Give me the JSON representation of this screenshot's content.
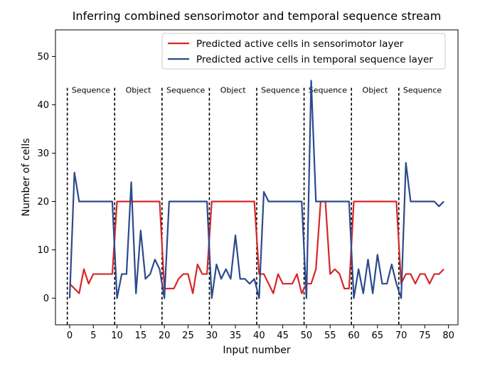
{
  "chart_data": {
    "type": "line",
    "title": "Inferring combined sensorimotor and temporal sequence stream",
    "xlabel": "Input number",
    "ylabel": "Number of cells",
    "xlim": [
      -3,
      82
    ],
    "ylim": [
      -5.5,
      55.5
    ],
    "xticks": [
      0,
      5,
      10,
      15,
      20,
      25,
      30,
      35,
      40,
      45,
      50,
      55,
      60,
      65,
      70,
      75,
      80
    ],
    "yticks": [
      0,
      10,
      20,
      30,
      40,
      50
    ],
    "grid": false,
    "legend_position": "top-right",
    "x": [
      0,
      1,
      2,
      3,
      4,
      5,
      6,
      7,
      8,
      9,
      10,
      11,
      12,
      13,
      14,
      15,
      16,
      17,
      18,
      19,
      20,
      21,
      22,
      23,
      24,
      25,
      26,
      27,
      28,
      29,
      30,
      31,
      32,
      33,
      34,
      35,
      36,
      37,
      38,
      39,
      40,
      41,
      42,
      43,
      44,
      45,
      46,
      47,
      48,
      49,
      50,
      51,
      52,
      53,
      54,
      55,
      56,
      57,
      58,
      59,
      60,
      61,
      62,
      63,
      64,
      65,
      66,
      67,
      68,
      69,
      70,
      71,
      72,
      73,
      74,
      75,
      76,
      77,
      78,
      79
    ],
    "series": [
      {
        "name": "Predicted active cells in sensorimotor layer",
        "color": "#d62728",
        "values": [
          3,
          2,
          1,
          6,
          3,
          5,
          5,
          5,
          5,
          5,
          20,
          20,
          20,
          20,
          20,
          20,
          20,
          20,
          20,
          20,
          2,
          2,
          2,
          4,
          5,
          5,
          1,
          7,
          5,
          5,
          20,
          20,
          20,
          20,
          20,
          20,
          20,
          20,
          20,
          20,
          5,
          5,
          3,
          1,
          5,
          3,
          3,
          3,
          5,
          1,
          3,
          3,
          6,
          20,
          20,
          5,
          6,
          5,
          2,
          2,
          20,
          20,
          20,
          20,
          20,
          20,
          20,
          20,
          20,
          20,
          3,
          5,
          5,
          3,
          5,
          5,
          3,
          5,
          5,
          6
        ]
      },
      {
        "name": "Predicted active cells in temporal sequence layer",
        "color": "#2c4a8c",
        "values": [
          0,
          26,
          20,
          20,
          20,
          20,
          20,
          20,
          20,
          20,
          0,
          5,
          5,
          24,
          1,
          14,
          4,
          5,
          8,
          6,
          0,
          20,
          20,
          20,
          20,
          20,
          20,
          20,
          20,
          20,
          0,
          7,
          4,
          6,
          4,
          13,
          4,
          4,
          3,
          4,
          0,
          22,
          20,
          20,
          20,
          20,
          20,
          20,
          20,
          20,
          0,
          45,
          20,
          20,
          20,
          20,
          20,
          20,
          20,
          20,
          0,
          6,
          1,
          8,
          1,
          9,
          3,
          3,
          7,
          3,
          0,
          28,
          20,
          20,
          20,
          20,
          20,
          20,
          19,
          20
        ]
      }
    ],
    "dividers": [
      -0.5,
      9.5,
      19.5,
      29.5,
      39.5,
      49.5,
      59.5,
      69.5
    ],
    "regions": [
      {
        "label": "Sequence",
        "x": 4.5
      },
      {
        "label": "Object",
        "x": 14.5
      },
      {
        "label": "Sequence",
        "x": 24.5
      },
      {
        "label": "Object",
        "x": 34.5
      },
      {
        "label": "Sequence",
        "x": 44.5
      },
      {
        "label": "Sequence",
        "x": 54.5
      },
      {
        "label": "Object",
        "x": 64.5
      },
      {
        "label": "Sequence",
        "x": 74.5
      }
    ]
  }
}
